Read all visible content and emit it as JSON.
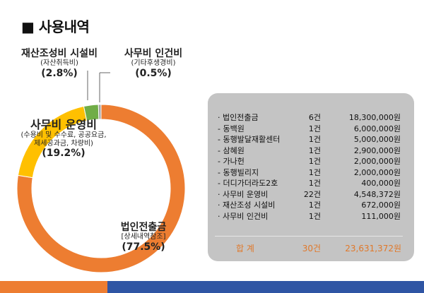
{
  "section_title": "■ 사용내역",
  "chart_data": {
    "type": "pie",
    "categories": [
      "법인전출금",
      "사무비 운영비",
      "재산조성비 시설비",
      "사무비 인건비"
    ],
    "values": [
      77.5,
      19.2,
      2.8,
      0.5
    ],
    "colors": [
      "#ed7d31",
      "#ffc000",
      "#70ad47",
      "#a5a5a5"
    ],
    "labels": {
      "donation": {
        "name": "법인전출금",
        "sub": "[상세내역참조]",
        "pct": "(77.5%)"
      },
      "operation": {
        "name": "사무비 운영비",
        "sub": "(수용비 및 수수료, 공공요금, 제세공과금, 차량비)",
        "pct": "(19.2%)"
      },
      "asset": {
        "name": "재산조성비 시설비",
        "sub": "(자산취득비)",
        "pct": "(2.8%)"
      },
      "labor": {
        "name": "사무비 인건비",
        "sub": "(기타후생경비)",
        "pct": "(0.5%)"
      }
    }
  },
  "details": {
    "rows": [
      {
        "name": "· 법인전출금",
        "count": "6건",
        "amount": "18,300,000원"
      },
      {
        "name": "- 동백원",
        "count": "1건",
        "amount": "6,000,000원"
      },
      {
        "name": "- 동행발달재활센터",
        "count": "1건",
        "amount": "5,000,000원"
      },
      {
        "name": "- 삼혜원",
        "count": "1건",
        "amount": "2,900,000원"
      },
      {
        "name": "- 가나헌",
        "count": "1건",
        "amount": "2,000,000원"
      },
      {
        "name": "- 동행빌리지",
        "count": "1건",
        "amount": "2,000,000원"
      },
      {
        "name": "- 더디가더라도2호",
        "count": "1건",
        "amount": "400,000원"
      },
      {
        "name": "· 사무비 운영비",
        "count": "22건",
        "amount": "4,548,372원"
      },
      {
        "name": "· 재산조성 시설비",
        "count": "1건",
        "amount": "672,000원"
      },
      {
        "name": "· 사무비 인건비",
        "count": "1건",
        "amount": "111,000원"
      }
    ],
    "total": {
      "label": "합   계",
      "count": "30건",
      "amount": "23,631,372원"
    }
  }
}
